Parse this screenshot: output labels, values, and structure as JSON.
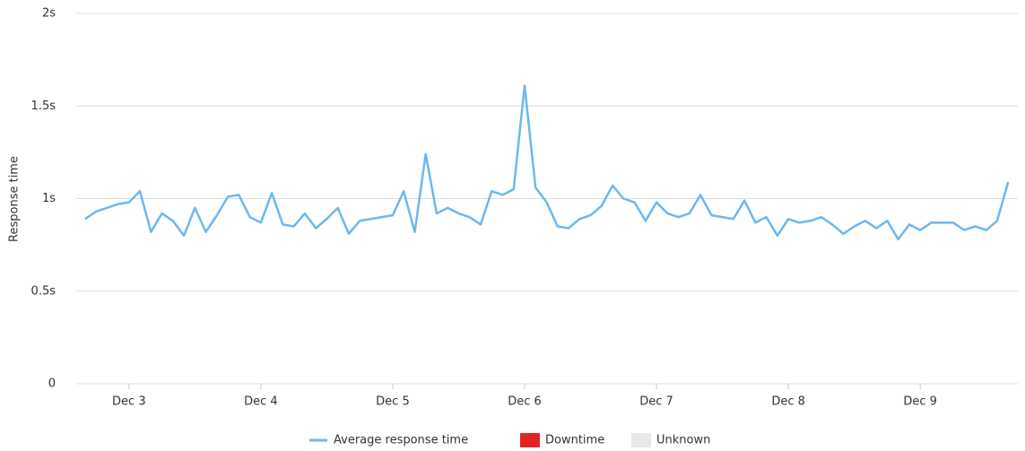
{
  "chart_data": {
    "type": "line",
    "y_label": "Response time",
    "x": [
      2.667,
      2.75,
      2.833,
      2.917,
      3,
      3.083,
      3.167,
      3.25,
      3.333,
      3.417,
      3.5,
      3.583,
      3.667,
      3.75,
      3.833,
      3.917,
      4,
      4.083,
      4.167,
      4.25,
      4.333,
      4.417,
      4.5,
      4.583,
      4.667,
      4.75,
      4.833,
      4.917,
      5,
      5.083,
      5.167,
      5.25,
      5.333,
      5.417,
      5.5,
      5.583,
      5.667,
      5.75,
      5.833,
      5.917,
      6,
      6.083,
      6.167,
      6.25,
      6.333,
      6.417,
      6.5,
      6.583,
      6.667,
      6.75,
      6.833,
      6.917,
      7,
      7.083,
      7.167,
      7.25,
      7.333,
      7.417,
      7.5,
      7.583,
      7.667,
      7.75,
      7.833,
      7.917,
      8,
      8.083,
      8.167,
      8.25,
      8.333,
      8.417,
      8.5,
      8.583,
      8.667,
      8.75,
      8.833,
      8.917,
      9,
      9.083,
      9.167,
      9.25,
      9.333,
      9.417,
      9.5,
      9.583,
      9.667
    ],
    "series": [
      {
        "name": "Average response time",
        "color": "#6cb8f0",
        "values": [
          0.89,
          0.93,
          0.95,
          0.97,
          0.98,
          1.04,
          0.82,
          0.92,
          0.88,
          0.8,
          0.95,
          0.82,
          0.91,
          1.01,
          1.02,
          0.9,
          0.87,
          1.03,
          0.86,
          0.85,
          0.92,
          0.84,
          0.89,
          0.95,
          0.81,
          0.88,
          0.89,
          0.9,
          0.91,
          1.04,
          0.82,
          1.24,
          0.92,
          0.95,
          0.92,
          0.9,
          0.86,
          1.04,
          1.02,
          1.05,
          1.61,
          1.06,
          0.98,
          0.85,
          0.84,
          0.89,
          0.91,
          0.96,
          1.07,
          1.0,
          0.98,
          0.88,
          0.98,
          0.92,
          0.9,
          0.92,
          1.02,
          0.91,
          0.9,
          0.89,
          0.99,
          0.87,
          0.9,
          0.8,
          0.89,
          0.87,
          0.88,
          0.9,
          0.86,
          0.81,
          0.85,
          0.88,
          0.84,
          0.88,
          0.78,
          0.86,
          0.83,
          0.87,
          0.87,
          0.87,
          0.83,
          0.85,
          0.83,
          0.88,
          1.09
        ]
      },
      {
        "name": "Downtime",
        "color": "#e02424"
      },
      {
        "name": "Unknown",
        "color": "#e8e8e8"
      }
    ],
    "xlim": [
      2.6,
      9.74
    ],
    "xticks": [
      {
        "value": 3,
        "label": "Dec 3"
      },
      {
        "value": 4,
        "label": "Dec 4"
      },
      {
        "value": 5,
        "label": "Dec 5"
      },
      {
        "value": 6,
        "label": "Dec 6"
      },
      {
        "value": 7,
        "label": "Dec 7"
      },
      {
        "value": 8,
        "label": "Dec 8"
      },
      {
        "value": 9,
        "label": "Dec 9"
      }
    ],
    "ylim": [
      0,
      2
    ],
    "yticks": [
      0,
      {
        "value": 0.5,
        "label": "0.5s"
      },
      {
        "value": 1,
        "label": "1s"
      },
      {
        "value": 1.5,
        "label": "1.5s"
      },
      {
        "value": 2,
        "label": "2s"
      }
    ],
    "grid": true
  }
}
